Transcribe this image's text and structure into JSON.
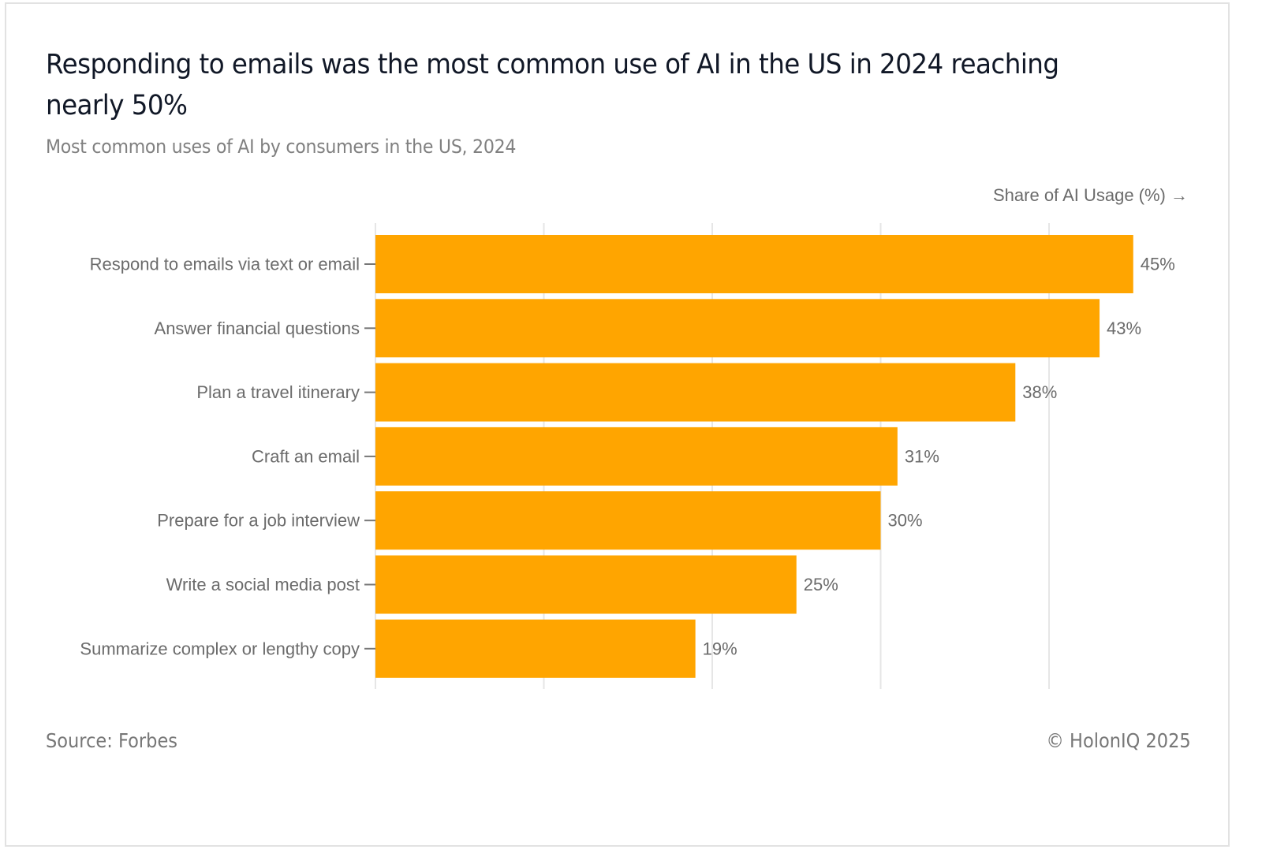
{
  "header": {
    "title": "Responding to emails was the most common use of AI in the US in 2024 reaching nearly 50%",
    "subtitle": "Most common uses of AI by consumers in the US, 2024"
  },
  "footer": {
    "source": "Source: Forbes",
    "copyright": "© HolonIQ 2025"
  },
  "colors": {
    "bar": "#FFA500",
    "label_text": "#6b6b6b",
    "grid": "#e6e6e6",
    "title_text": "#111827"
  },
  "chart_data": {
    "type": "bar",
    "orientation": "horizontal",
    "title": "Responding to emails was the most common use of AI in the US in 2024 reaching nearly 50%",
    "subtitle": "Most common uses of AI by consumers in the US, 2024",
    "xlabel": "Share of AI Usage (%) →",
    "ylabel": "",
    "categories": [
      "Respond to emails via text or email",
      "Answer financial questions",
      "Plan a travel itinerary",
      "Craft an email",
      "Prepare for a job interview",
      "Write a social media post",
      "Summarize complex or lengthy copy"
    ],
    "values": [
      45,
      43,
      38,
      31,
      30,
      25,
      19
    ],
    "value_labels": [
      "45%",
      "43%",
      "38%",
      "31%",
      "30%",
      "25%",
      "19%"
    ],
    "xlim": [
      0,
      50
    ],
    "gridlines_x": [
      0,
      10,
      20,
      30,
      40
    ],
    "x_tick_labels_visible": false,
    "grid": true,
    "legend": "none",
    "source": "Source: Forbes"
  }
}
